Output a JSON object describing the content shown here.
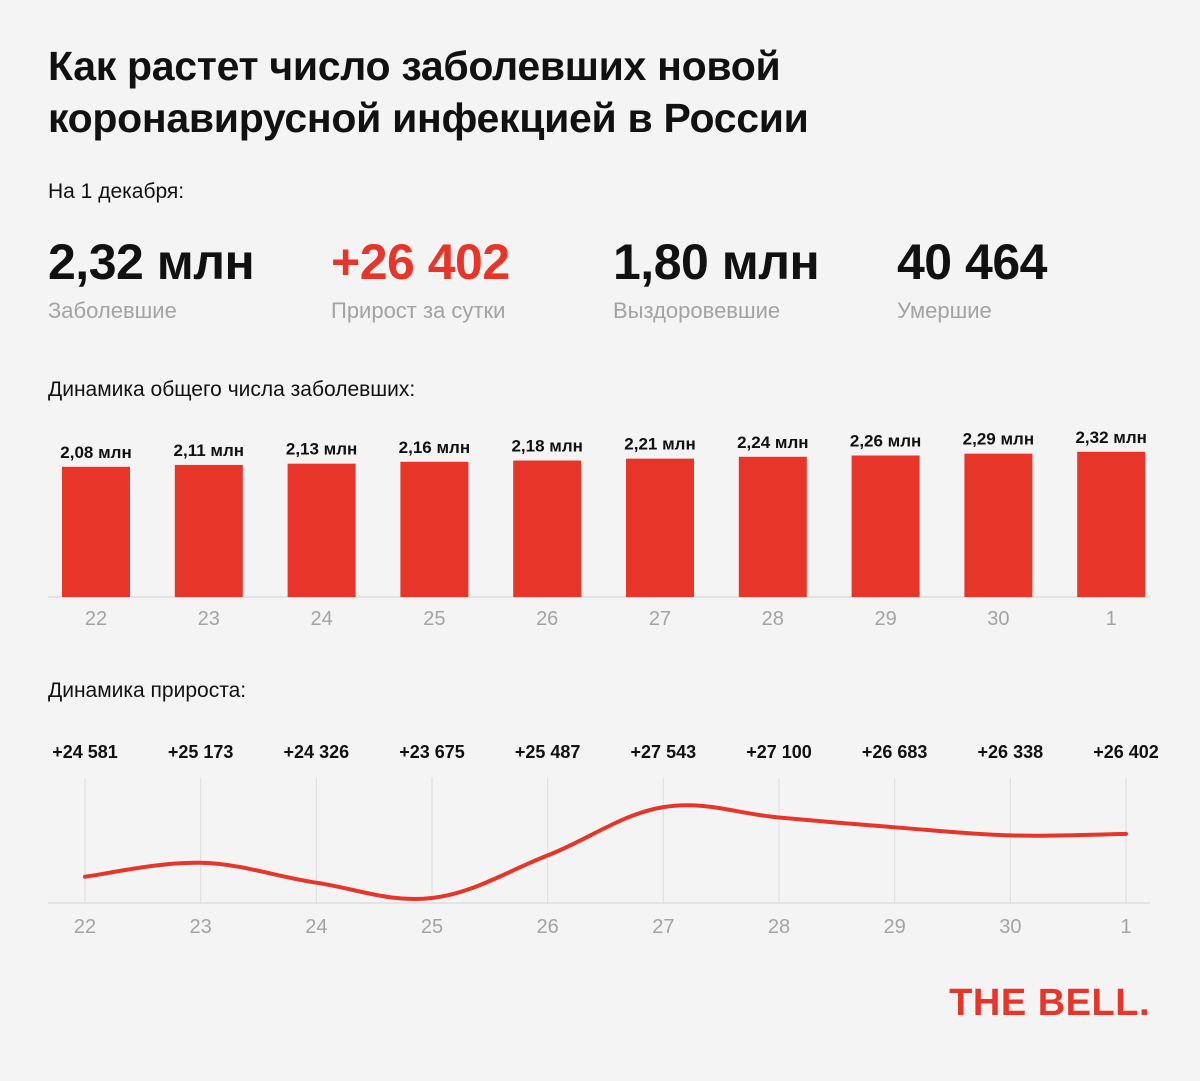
{
  "title": "Как растет число заболевших новой коронавирусной инфекцией в России",
  "date_label": "На 1 декабря:",
  "stats": [
    {
      "value": "2,32 млн",
      "label": "Заболевшие"
    },
    {
      "value": "+26 402",
      "label": "Прирост за сутки"
    },
    {
      "value": "1,80 млн",
      "label": "Выздоровевшие"
    },
    {
      "value": "40 464",
      "label": "Умершие"
    }
  ],
  "colors": {
    "accent": "#e8352a",
    "text": "#111111",
    "muted": "#a3a3a3",
    "grid": "#dddddd",
    "background": "#f4f4f4"
  },
  "chart_data": [
    {
      "type": "bar",
      "title": "Динамика общего числа заболевших:",
      "categories": [
        "22",
        "23",
        "24",
        "25",
        "26",
        "27",
        "28",
        "29",
        "30",
        "1"
      ],
      "values": [
        2.08,
        2.11,
        2.13,
        2.16,
        2.18,
        2.21,
        2.24,
        2.26,
        2.29,
        2.32
      ],
      "data_labels": [
        "2,08 млн",
        "2,11 млн",
        "2,13 млн",
        "2,16 млн",
        "2,18 млн",
        "2,21 млн",
        "2,24 млн",
        "2,26 млн",
        "2,29 млн",
        "2,32 млн"
      ],
      "unit": "млн",
      "ylim": [
        0,
        2.5
      ],
      "grid": false
    },
    {
      "type": "line",
      "title": "Динамика прироста:",
      "categories": [
        "22",
        "23",
        "24",
        "25",
        "26",
        "27",
        "28",
        "29",
        "30",
        "1"
      ],
      "values": [
        24581,
        25173,
        24326,
        23675,
        25487,
        27543,
        27100,
        26683,
        26338,
        26402
      ],
      "data_labels": [
        "+24 581",
        "+25 173",
        "+24 326",
        "+23 675",
        "+25 487",
        "+27 543",
        "+27 100",
        "+26 683",
        "+26 338",
        "+26 402"
      ],
      "ylim": [
        23600,
        28000
      ],
      "grid": true
    }
  ],
  "logo": "THE BELL."
}
